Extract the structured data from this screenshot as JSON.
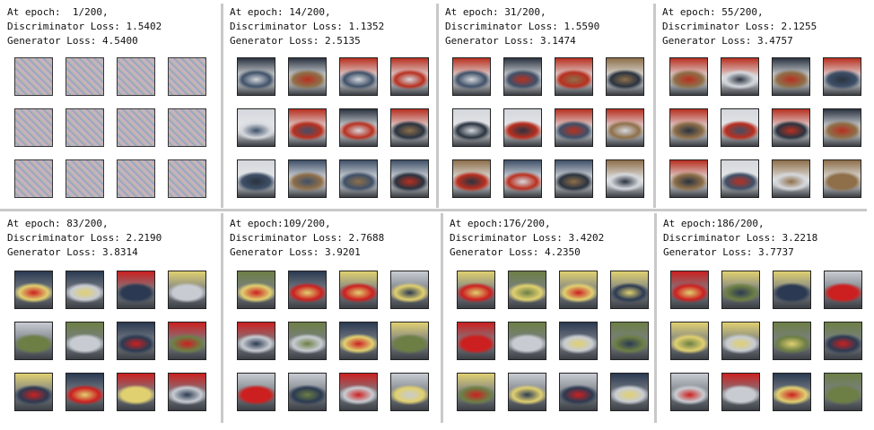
{
  "panels": [
    {
      "epoch": "At epoch:  1/200,",
      "disc": "Discriminator Loss: 1.5402",
      "gen": "Generator Loss: 4.5400",
      "palette": "noise"
    },
    {
      "epoch": "At epoch: 14/200,",
      "disc": "Discriminator Loss: 1.1352",
      "gen": "Generator Loss: 2.5135",
      "palette": "blur"
    },
    {
      "epoch": "At epoch: 31/200,",
      "disc": "Discriminator Loss: 1.5590",
      "gen": "Generator Loss: 3.1474",
      "palette": "blur"
    },
    {
      "epoch": "At epoch: 55/200,",
      "disc": "Discriminator Loss: 2.1255",
      "gen": "Generator Loss: 3.4757",
      "palette": "blur"
    },
    {
      "epoch": "At epoch: 83/200,",
      "disc": "Discriminator Loss: 2.2190",
      "gen": "Generator Loss: 3.8314",
      "palette": "car"
    },
    {
      "epoch": "At epoch:109/200,",
      "disc": "Discriminator Loss: 2.7688",
      "gen": "Generator Loss: 3.9201",
      "palette": "car"
    },
    {
      "epoch": "At epoch:176/200,",
      "disc": "Discriminator Loss: 3.4202",
      "gen": "Generator Loss: 4.2350",
      "palette": "car"
    },
    {
      "epoch": "At epoch:186/200,",
      "disc": "Discriminator Loss: 3.2218",
      "gen": "Generator Loss: 3.7737",
      "palette": "car"
    }
  ],
  "colors": {
    "divider": "#c9c9c9",
    "noise": [
      "#b7a7b5",
      "#9aa7b8",
      "#c8a0b2",
      "#8f9aa9"
    ],
    "blur": [
      "#2a3340",
      "#b83020",
      "#d4d7dc",
      "#3f5068",
      "#8e6f4a"
    ],
    "car": [
      "#cc2020",
      "#c8ccd2",
      "#2b3a52",
      "#6d7f45",
      "#e0d070"
    ]
  }
}
